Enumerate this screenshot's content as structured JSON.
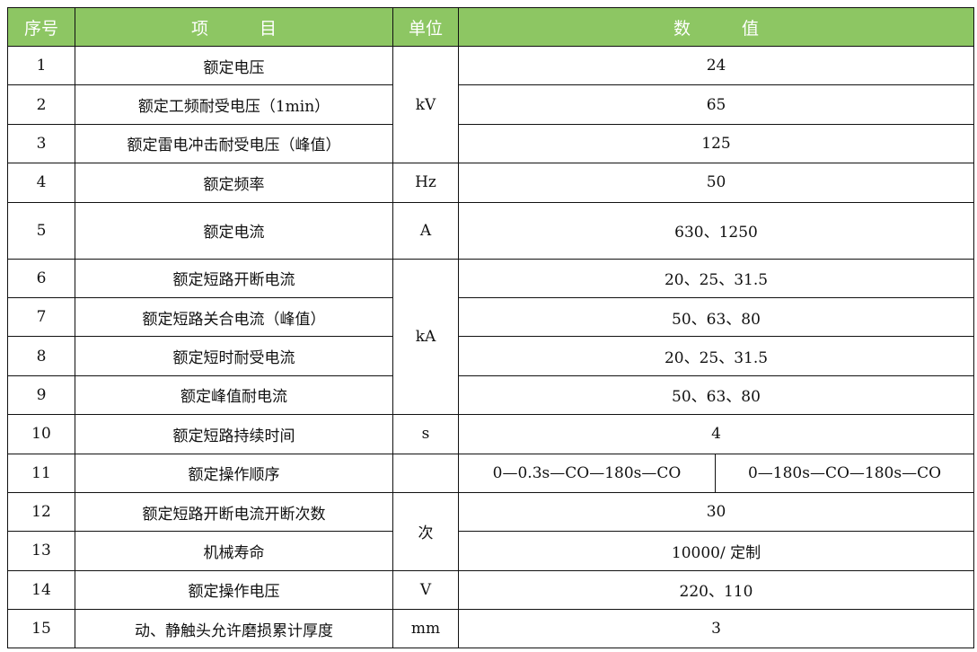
{
  "header": {
    "no": "序号",
    "item": "项　　　目",
    "unit": "单位",
    "value": "数　　　值"
  },
  "header_color": "#8dc663",
  "rows": [
    {
      "no": "1",
      "item": "额定电压",
      "unit": "kV",
      "unit_span": 3,
      "value": "24"
    },
    {
      "no": "2",
      "item": "额定工频耐受电压（1min）",
      "value": "65"
    },
    {
      "no": "3",
      "item": "额定雷电冲击耐受电压（峰值）",
      "value": "125"
    },
    {
      "no": "4",
      "item": "额定频率",
      "unit": "Hz",
      "unit_span": 1,
      "value": "50"
    },
    {
      "no": "5",
      "item": "额定电流",
      "unit": "A",
      "unit_span": 1,
      "value": "630、1250"
    },
    {
      "no": "6",
      "item": "额定短路开断电流",
      "unit": "kA",
      "unit_span": 4,
      "value": "20、25、31.5"
    },
    {
      "no": "7",
      "item": "额定短路关合电流（峰值）",
      "value": "50、63、80"
    },
    {
      "no": "8",
      "item": "额定短时耐受电流",
      "value": "20、25、31.5"
    },
    {
      "no": "9",
      "item": "额定峰值耐电流",
      "value": "50、63、80"
    },
    {
      "no": "10",
      "item": "额定短路持续时间",
      "unit": "s",
      "unit_span": 1,
      "value": "4"
    },
    {
      "no": "11",
      "item": "额定操作顺序",
      "unit": "",
      "unit_span": 1,
      "values": [
        "0—0.3s—CO—180s—CO",
        "0—180s—CO—180s—CO"
      ]
    },
    {
      "no": "12",
      "item": "额定短路开断电流开断次数",
      "unit": "次",
      "unit_span": 2,
      "value": "30"
    },
    {
      "no": "13",
      "item": "机械寿命",
      "value": "10000/ 定制"
    },
    {
      "no": "14",
      "item": "额定操作电压",
      "unit": "V",
      "unit_span": 1,
      "value": "220、110"
    },
    {
      "no": "15",
      "item": "动、静触头允许磨损累计厚度",
      "unit": "mm",
      "unit_span": 1,
      "value": "3"
    }
  ]
}
